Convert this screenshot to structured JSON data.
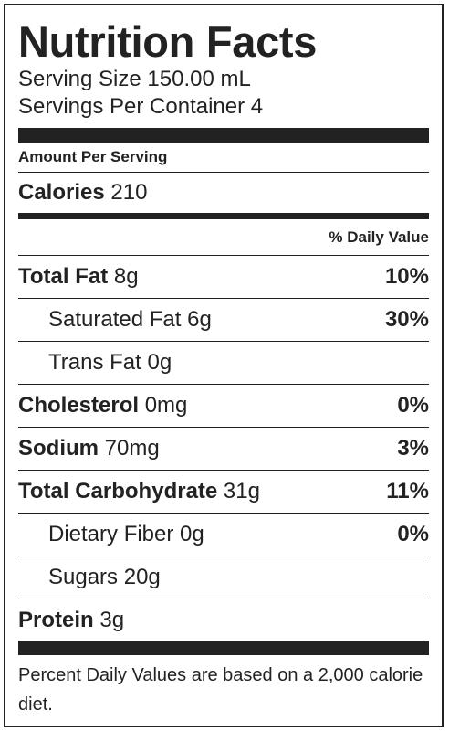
{
  "label": {
    "title": "Nutrition Facts",
    "serving_size": "Serving Size 150.00 mL",
    "servings_per_container": "Servings Per Container 4",
    "amount_per_serving": "Amount Per Serving",
    "calories_label": "Calories",
    "calories_value": "210",
    "daily_value_header": "% Daily Value",
    "nutrients": [
      {
        "name": "Total Fat",
        "amount": "8g",
        "percent": "10%"
      },
      {
        "name": "Saturated Fat",
        "amount": "6g",
        "percent": "30%"
      },
      {
        "name": "Trans Fat",
        "amount": "0g",
        "percent": ""
      },
      {
        "name": "Cholesterol",
        "amount": "0mg",
        "percent": "0%"
      },
      {
        "name": "Sodium",
        "amount": "70mg",
        "percent": "3%"
      },
      {
        "name": "Total Carbohydrate",
        "amount": "31g",
        "percent": "11%"
      },
      {
        "name": "Dietary Fiber",
        "amount": "0g",
        "percent": "0%"
      },
      {
        "name": "Sugars",
        "amount": "20g",
        "percent": ""
      },
      {
        "name": "Protein",
        "amount": "3g",
        "percent": ""
      }
    ],
    "footnote": "Percent Daily Values are based on a 2,000 calorie diet."
  }
}
